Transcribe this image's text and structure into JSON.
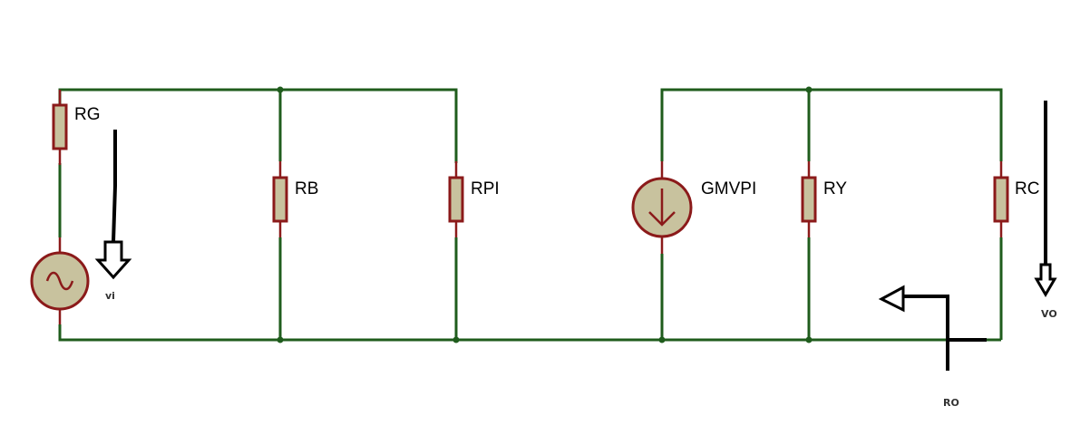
{
  "components": {
    "rg": "RG",
    "rb": "RB",
    "rpi": "RPI",
    "gmvpi": "GMVPI",
    "ry": "RY",
    "rc": "RC"
  },
  "probes": {
    "vi": "vi",
    "vo": "VO",
    "ro": "RO"
  },
  "colors": {
    "wire": "#1f5c1c",
    "component_outline": "#8b1a1a",
    "component_fill": "#c8c29e",
    "probe": "#000000"
  }
}
